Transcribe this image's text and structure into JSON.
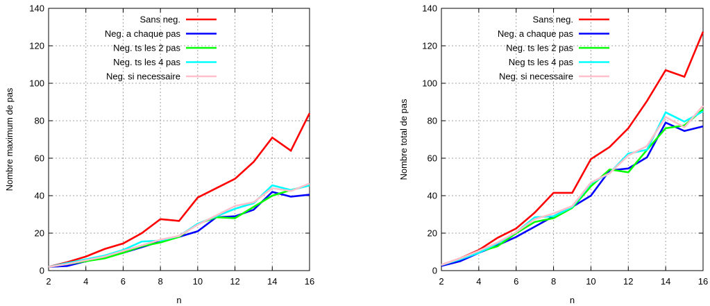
{
  "chart_data": [
    {
      "type": "line",
      "title": "",
      "xlabel": "n",
      "ylabel": "Nombre maximum de pas",
      "xlim": [
        2,
        16
      ],
      "ylim": [
        0,
        140
      ],
      "xticks": [
        2,
        4,
        6,
        8,
        10,
        12,
        14,
        16
      ],
      "yticks": [
        0,
        20,
        40,
        60,
        80,
        100,
        120,
        140
      ],
      "grid": true,
      "legend_position": "top-left",
      "x": [
        2,
        3,
        4,
        5,
        6,
        7,
        8,
        9,
        10,
        11,
        12,
        13,
        14,
        15,
        16
      ],
      "series": [
        {
          "name": "Sans neg.",
          "color": "#ff0000",
          "values": [
            2,
            4.5,
            7.5,
            11.5,
            14.5,
            20,
            27.5,
            26.5,
            39,
            44,
            49,
            58,
            71,
            64,
            84
          ]
        },
        {
          "name": "Neg. a chaque pas",
          "color": "#0000ff",
          "values": [
            2,
            2.5,
            5,
            7,
            9.5,
            12.5,
            15.5,
            18,
            21,
            28.5,
            29,
            32.5,
            42,
            39.5,
            40.5
          ]
        },
        {
          "name": "Neg. ts les 2 pas",
          "color": "#00ff00",
          "values": [
            2,
            3.5,
            5,
            6.5,
            9.5,
            13,
            15,
            18,
            25,
            28.5,
            28,
            34,
            40,
            43,
            45.5
          ]
        },
        {
          "name": "Neg. ts les 4 pas",
          "color": "#00ffff",
          "values": [
            2,
            4,
            6,
            8,
            11,
            15.5,
            16,
            18.5,
            25,
            29,
            33,
            36,
            45.5,
            43,
            45.5
          ]
        },
        {
          "name": "Neg. si necessaire",
          "color": "#ffc0cb",
          "values": [
            2,
            3.5,
            5.5,
            7.5,
            10.5,
            13.5,
            16.5,
            18.5,
            24.5,
            29.5,
            34.5,
            36.5,
            44,
            42.5,
            46.5
          ]
        }
      ]
    },
    {
      "type": "line",
      "title": "",
      "xlabel": "n",
      "ylabel": "Nombre total de pas",
      "xlim": [
        2,
        16
      ],
      "ylim": [
        0,
        140
      ],
      "xticks": [
        2,
        4,
        6,
        8,
        10,
        12,
        14,
        16
      ],
      "yticks": [
        0,
        20,
        40,
        60,
        80,
        100,
        120,
        140
      ],
      "grid": true,
      "legend_position": "top-left",
      "x": [
        2,
        3,
        4,
        5,
        6,
        7,
        8,
        9,
        10,
        11,
        12,
        13,
        14,
        15,
        16
      ],
      "series": [
        {
          "name": "Sans neg.",
          "color": "#ff0000",
          "values": [
            3,
            6.5,
            11,
            17.5,
            22.5,
            31,
            41.5,
            41.5,
            59.5,
            66,
            76,
            90.5,
            107,
            103.5,
            127.5
          ]
        },
        {
          "name": "Neg. a chaque pas",
          "color": "#0000ff",
          "values": [
            2.5,
            5,
            9.5,
            13.5,
            18,
            23.5,
            29,
            34,
            40,
            53.5,
            54.5,
            60.5,
            79,
            74.5,
            77
          ]
        },
        {
          "name": "Neg. ts les 2 pas",
          "color": "#00ff00",
          "values": [
            3,
            6,
            10,
            13,
            20,
            26,
            28,
            33.5,
            45,
            54,
            52.5,
            64.5,
            76,
            77.5,
            86
          ]
        },
        {
          "name": "Neg ts les 4 pas",
          "color": "#00ffff",
          "values": [
            3,
            6,
            9.5,
            14.5,
            20.5,
            28.5,
            29,
            34,
            46.5,
            52,
            62.5,
            64.5,
            84.5,
            79.5,
            85
          ]
        },
        {
          "name": "Neg. si necessaire",
          "color": "#ffc0cb",
          "values": [
            3,
            6.5,
            10.5,
            15,
            20.5,
            27.5,
            30.5,
            34.5,
            47,
            52,
            61.5,
            66.5,
            82,
            76.5,
            88
          ]
        }
      ]
    }
  ]
}
